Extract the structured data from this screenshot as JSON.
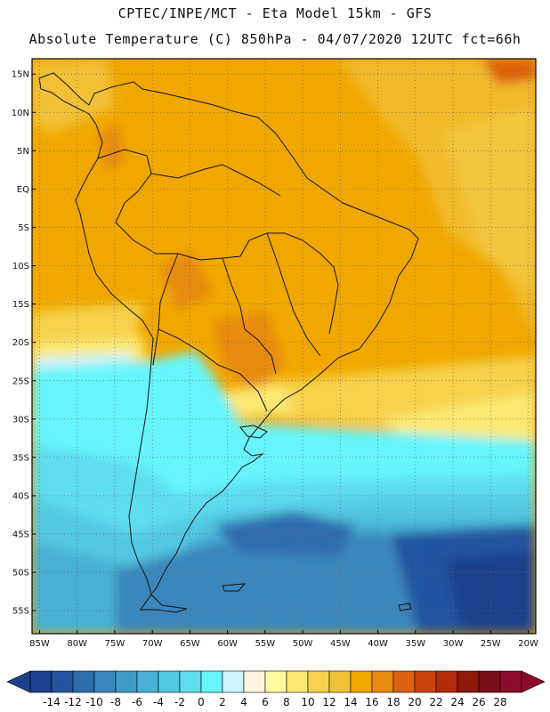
{
  "title": {
    "line1": "CPTEC/INPE/MCT -  Eta Model 15km - GFS",
    "line2": "Absolute Temperature (C) 850hPa - 04/07/2020 12UTC fct=66h"
  },
  "map": {
    "region": "South America",
    "lon_range": [
      -86,
      -19
    ],
    "lat_range": [
      -58,
      17
    ],
    "lat_labels": [
      "15N",
      "10N",
      "5N",
      "EQ",
      "5S",
      "10S",
      "15S",
      "20S",
      "25S",
      "30S",
      "35S",
      "40S",
      "45S",
      "50S",
      "55S"
    ],
    "lat_values": [
      15,
      10,
      5,
      0,
      -5,
      -10,
      -15,
      -20,
      -25,
      -30,
      -35,
      -40,
      -45,
      -50,
      -55
    ],
    "lon_labels": [
      "85W",
      "80W",
      "75W",
      "70W",
      "65W",
      "60W",
      "55W",
      "50W",
      "45W",
      "40W",
      "35W",
      "30W",
      "25W",
      "20W"
    ],
    "lon_values": [
      -85,
      -80,
      -75,
      -70,
      -65,
      -60,
      -55,
      -50,
      -45,
      -40,
      -35,
      -30,
      -25,
      -20
    ]
  },
  "colorbar": {
    "labels": [
      "-14",
      "-12",
      "-10",
      "-8",
      "-6",
      "-4",
      "-2",
      "0",
      "2",
      "4",
      "6",
      "8",
      "10",
      "12",
      "14",
      "16",
      "18",
      "20",
      "22",
      "24",
      "26",
      "28"
    ],
    "colors": [
      "#1e3f8c",
      "#24539e",
      "#2d6cad",
      "#3a86bd",
      "#3f9ac8",
      "#47b0d6",
      "#52c8e2",
      "#5fdcee",
      "#66f5fb",
      "#cdf3fb",
      "#fff5e0",
      "#fffba0",
      "#fbe873",
      "#f6d24c",
      "#f2c036",
      "#f0a800",
      "#e88a10",
      "#dd6011",
      "#c94311",
      "#b32a0a",
      "#8f1a0a",
      "#7a0e1a",
      "#8c0b2c"
    ]
  }
}
